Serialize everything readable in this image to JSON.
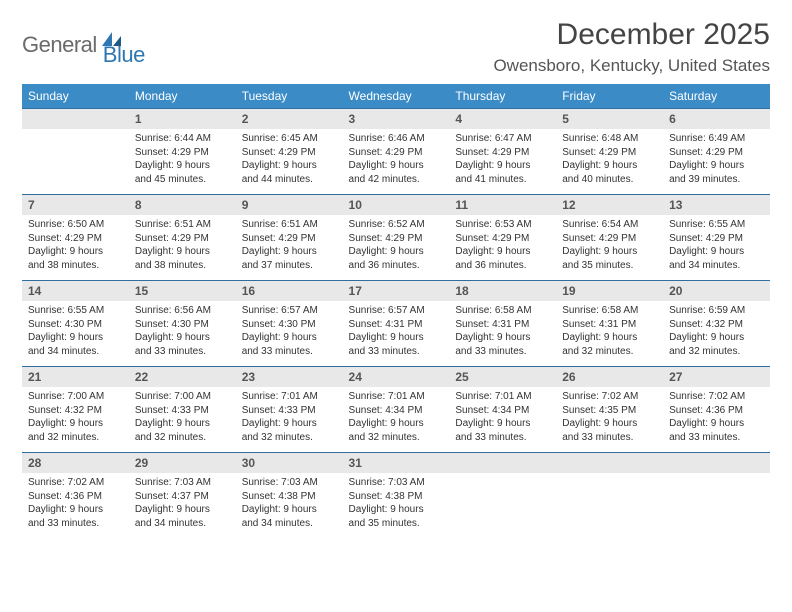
{
  "logo": {
    "text1": "General",
    "text2": "Blue"
  },
  "title": "December 2025",
  "location": "Owensboro, Kentucky, United States",
  "header_bg": "#3b8bc6",
  "date_bg": "#e8e8e8",
  "day_names": [
    "Sunday",
    "Monday",
    "Tuesday",
    "Wednesday",
    "Thursday",
    "Friday",
    "Saturday"
  ],
  "weeks": [
    {
      "dates": [
        "",
        "1",
        "2",
        "3",
        "4",
        "5",
        "6"
      ],
      "info": [
        [],
        [
          "Sunrise: 6:44 AM",
          "Sunset: 4:29 PM",
          "Daylight: 9 hours",
          "and 45 minutes."
        ],
        [
          "Sunrise: 6:45 AM",
          "Sunset: 4:29 PM",
          "Daylight: 9 hours",
          "and 44 minutes."
        ],
        [
          "Sunrise: 6:46 AM",
          "Sunset: 4:29 PM",
          "Daylight: 9 hours",
          "and 42 minutes."
        ],
        [
          "Sunrise: 6:47 AM",
          "Sunset: 4:29 PM",
          "Daylight: 9 hours",
          "and 41 minutes."
        ],
        [
          "Sunrise: 6:48 AM",
          "Sunset: 4:29 PM",
          "Daylight: 9 hours",
          "and 40 minutes."
        ],
        [
          "Sunrise: 6:49 AM",
          "Sunset: 4:29 PM",
          "Daylight: 9 hours",
          "and 39 minutes."
        ]
      ]
    },
    {
      "dates": [
        "7",
        "8",
        "9",
        "10",
        "11",
        "12",
        "13"
      ],
      "info": [
        [
          "Sunrise: 6:50 AM",
          "Sunset: 4:29 PM",
          "Daylight: 9 hours",
          "and 38 minutes."
        ],
        [
          "Sunrise: 6:51 AM",
          "Sunset: 4:29 PM",
          "Daylight: 9 hours",
          "and 38 minutes."
        ],
        [
          "Sunrise: 6:51 AM",
          "Sunset: 4:29 PM",
          "Daylight: 9 hours",
          "and 37 minutes."
        ],
        [
          "Sunrise: 6:52 AM",
          "Sunset: 4:29 PM",
          "Daylight: 9 hours",
          "and 36 minutes."
        ],
        [
          "Sunrise: 6:53 AM",
          "Sunset: 4:29 PM",
          "Daylight: 9 hours",
          "and 36 minutes."
        ],
        [
          "Sunrise: 6:54 AM",
          "Sunset: 4:29 PM",
          "Daylight: 9 hours",
          "and 35 minutes."
        ],
        [
          "Sunrise: 6:55 AM",
          "Sunset: 4:29 PM",
          "Daylight: 9 hours",
          "and 34 minutes."
        ]
      ]
    },
    {
      "dates": [
        "14",
        "15",
        "16",
        "17",
        "18",
        "19",
        "20"
      ],
      "info": [
        [
          "Sunrise: 6:55 AM",
          "Sunset: 4:30 PM",
          "Daylight: 9 hours",
          "and 34 minutes."
        ],
        [
          "Sunrise: 6:56 AM",
          "Sunset: 4:30 PM",
          "Daylight: 9 hours",
          "and 33 minutes."
        ],
        [
          "Sunrise: 6:57 AM",
          "Sunset: 4:30 PM",
          "Daylight: 9 hours",
          "and 33 minutes."
        ],
        [
          "Sunrise: 6:57 AM",
          "Sunset: 4:31 PM",
          "Daylight: 9 hours",
          "and 33 minutes."
        ],
        [
          "Sunrise: 6:58 AM",
          "Sunset: 4:31 PM",
          "Daylight: 9 hours",
          "and 33 minutes."
        ],
        [
          "Sunrise: 6:58 AM",
          "Sunset: 4:31 PM",
          "Daylight: 9 hours",
          "and 32 minutes."
        ],
        [
          "Sunrise: 6:59 AM",
          "Sunset: 4:32 PM",
          "Daylight: 9 hours",
          "and 32 minutes."
        ]
      ]
    },
    {
      "dates": [
        "21",
        "22",
        "23",
        "24",
        "25",
        "26",
        "27"
      ],
      "info": [
        [
          "Sunrise: 7:00 AM",
          "Sunset: 4:32 PM",
          "Daylight: 9 hours",
          "and 32 minutes."
        ],
        [
          "Sunrise: 7:00 AM",
          "Sunset: 4:33 PM",
          "Daylight: 9 hours",
          "and 32 minutes."
        ],
        [
          "Sunrise: 7:01 AM",
          "Sunset: 4:33 PM",
          "Daylight: 9 hours",
          "and 32 minutes."
        ],
        [
          "Sunrise: 7:01 AM",
          "Sunset: 4:34 PM",
          "Daylight: 9 hours",
          "and 32 minutes."
        ],
        [
          "Sunrise: 7:01 AM",
          "Sunset: 4:34 PM",
          "Daylight: 9 hours",
          "and 33 minutes."
        ],
        [
          "Sunrise: 7:02 AM",
          "Sunset: 4:35 PM",
          "Daylight: 9 hours",
          "and 33 minutes."
        ],
        [
          "Sunrise: 7:02 AM",
          "Sunset: 4:36 PM",
          "Daylight: 9 hours",
          "and 33 minutes."
        ]
      ]
    },
    {
      "dates": [
        "28",
        "29",
        "30",
        "31",
        "",
        "",
        ""
      ],
      "info": [
        [
          "Sunrise: 7:02 AM",
          "Sunset: 4:36 PM",
          "Daylight: 9 hours",
          "and 33 minutes."
        ],
        [
          "Sunrise: 7:03 AM",
          "Sunset: 4:37 PM",
          "Daylight: 9 hours",
          "and 34 minutes."
        ],
        [
          "Sunrise: 7:03 AM",
          "Sunset: 4:38 PM",
          "Daylight: 9 hours",
          "and 34 minutes."
        ],
        [
          "Sunrise: 7:03 AM",
          "Sunset: 4:38 PM",
          "Daylight: 9 hours",
          "and 35 minutes."
        ],
        [],
        [],
        []
      ]
    }
  ]
}
